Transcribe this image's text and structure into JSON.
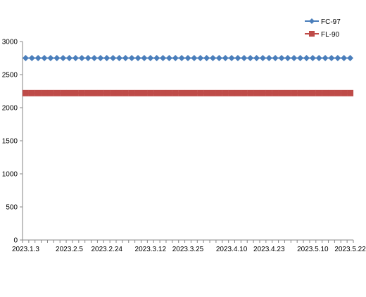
{
  "chart_data": {
    "type": "line",
    "title": "",
    "xlabel": "",
    "ylabel": "",
    "ylim": [
      0,
      3000
    ],
    "yticks": [
      0,
      500,
      1000,
      1500,
      2000,
      2500,
      3000
    ],
    "x_tick_labels": [
      "2023.1.3",
      "2023.2.5",
      "2023.2.24",
      "2023.3.12",
      "2023.3.25",
      "2023.4.10",
      "2023.4.23",
      "2023.5.10",
      "2023.5.22"
    ],
    "point_count": 53,
    "grid": false,
    "legend_position": "top-right",
    "series": [
      {
        "name": "FC-97",
        "value": 2750,
        "color": "#4a7ebb",
        "marker": "diamond"
      },
      {
        "name": "FL-90",
        "value": 2220,
        "color": "#be4b48",
        "marker": "square"
      }
    ]
  }
}
